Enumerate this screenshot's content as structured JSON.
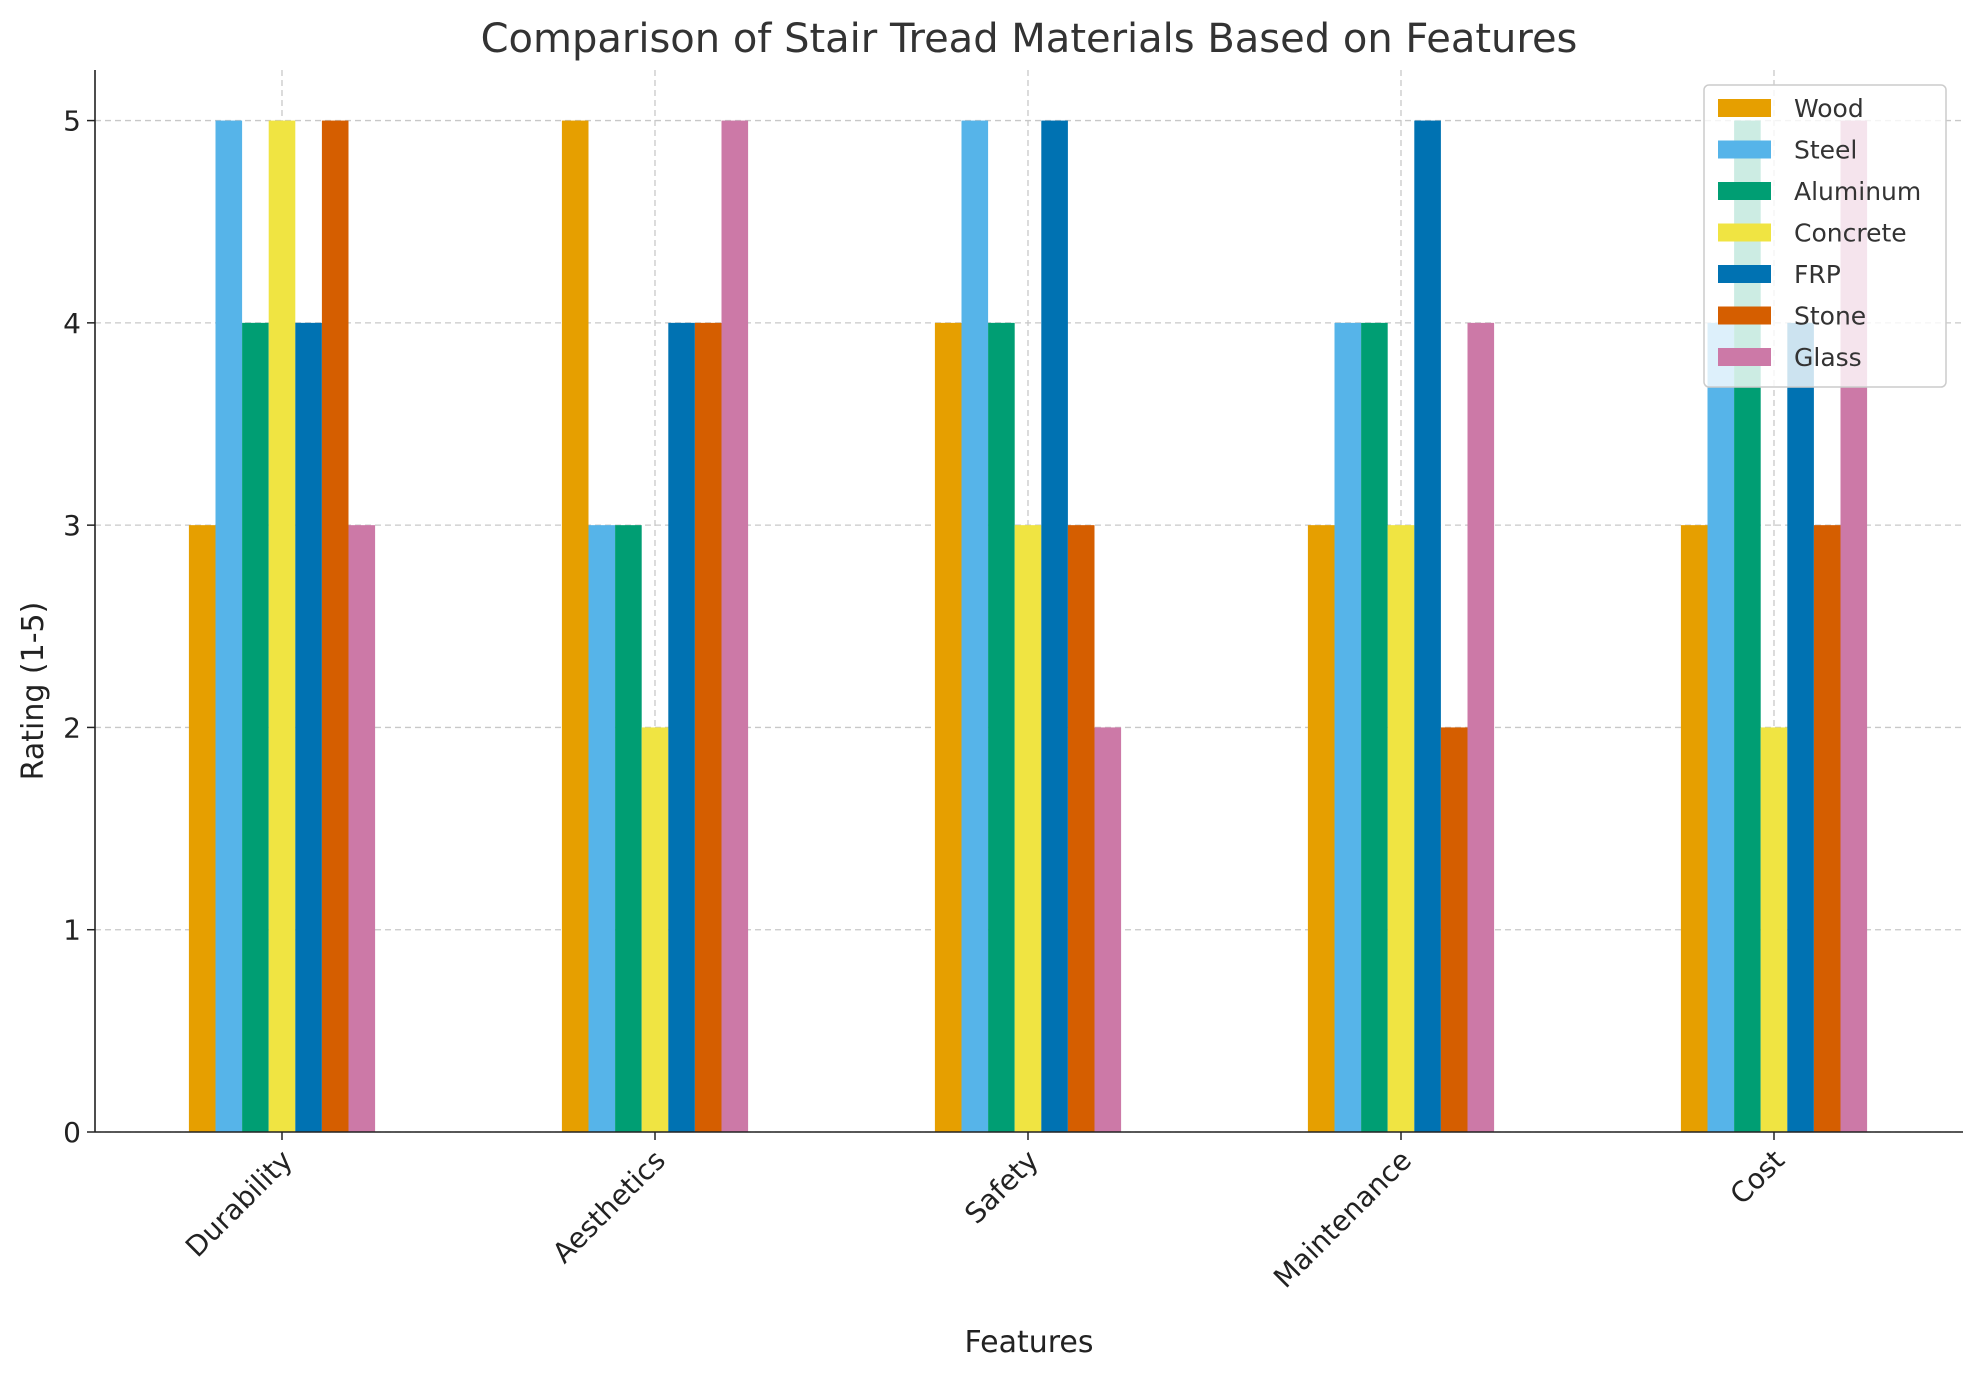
{
  "chart_data": {
    "type": "bar",
    "title": "Comparison of Stair Tread Materials Based on Features",
    "xlabel": "Features",
    "ylabel": "Rating (1-5)",
    "ylim": [
      0,
      5.25
    ],
    "yticks": [
      0,
      1,
      2,
      3,
      4,
      5
    ],
    "grid": true,
    "legend_position": "top-right",
    "categories": [
      "Durability",
      "Aesthetics",
      "Safety",
      "Maintenance",
      "Cost"
    ],
    "series": [
      {
        "name": "Wood",
        "color": "#E69F00",
        "values": [
          3,
          5,
          4,
          3,
          3
        ]
      },
      {
        "name": "Steel",
        "color": "#56B4E9",
        "values": [
          5,
          3,
          5,
          4,
          4
        ]
      },
      {
        "name": "Aluminum",
        "color": "#009E73",
        "values": [
          4,
          3,
          4,
          4,
          5
        ]
      },
      {
        "name": "Concrete",
        "color": "#F0E442",
        "values": [
          5,
          2,
          3,
          3,
          2
        ]
      },
      {
        "name": "FRP",
        "color": "#0072B2",
        "values": [
          4,
          4,
          5,
          5,
          4
        ]
      },
      {
        "name": "Stone",
        "color": "#D55E00",
        "values": [
          5,
          4,
          3,
          2,
          3
        ]
      },
      {
        "name": "Glass",
        "color": "#CC79A7",
        "values": [
          3,
          5,
          2,
          4,
          5
        ]
      }
    ]
  }
}
